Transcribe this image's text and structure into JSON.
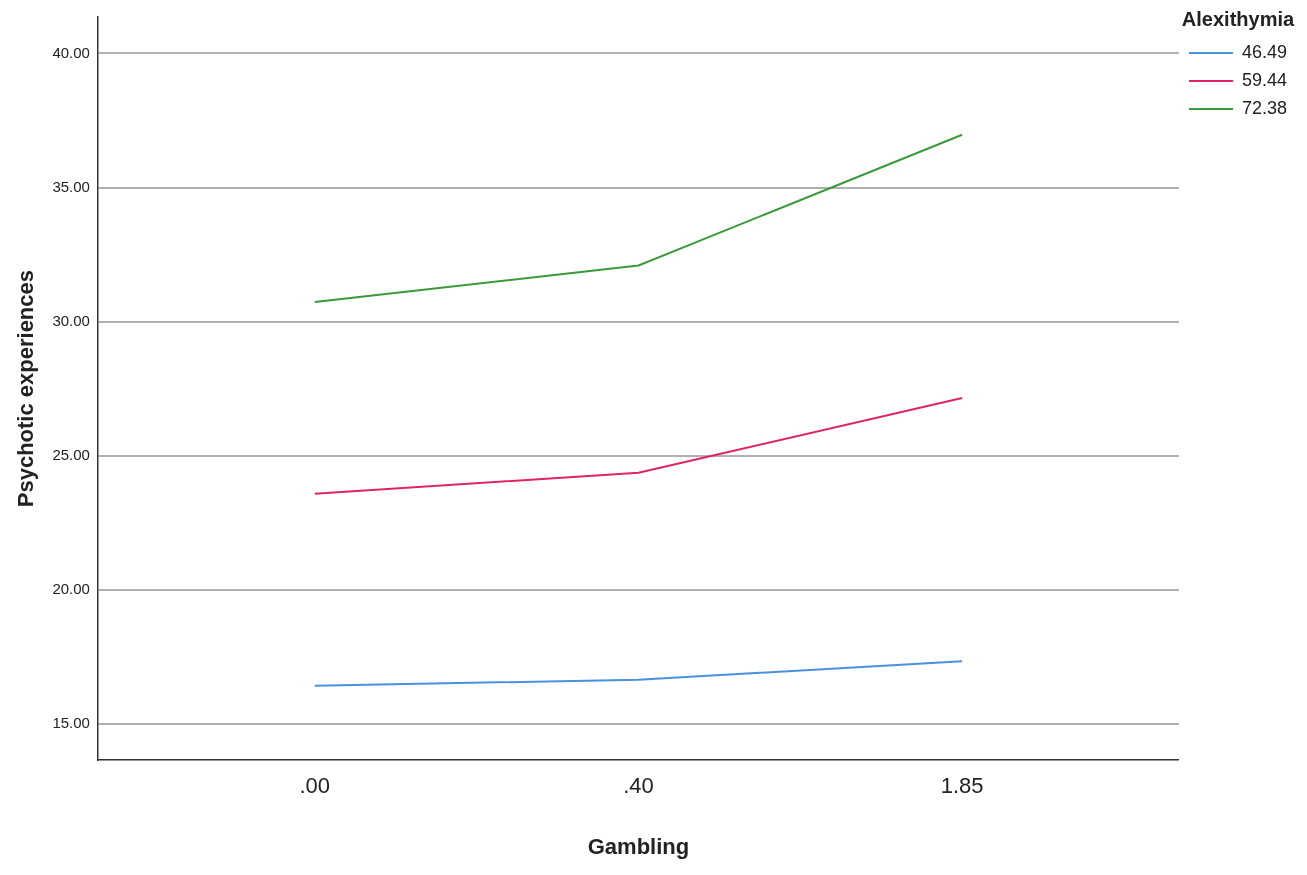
{
  "chart_data": {
    "type": "line",
    "xlabel": "Gambling",
    "ylabel": "Psychotic experiences",
    "legend_title": "Alexithymia",
    "categories": [
      ".00",
      ".40",
      "1.85"
    ],
    "series": [
      {
        "name": "46.49",
        "color": "#4a90e2",
        "values": [
          16.42,
          16.64,
          17.33
        ]
      },
      {
        "name": "59.44",
        "color": "#e0245e",
        "values": [
          23.58,
          24.36,
          27.15
        ]
      },
      {
        "name": "72.38",
        "color": "#3a9a3a",
        "values": [
          30.73,
          32.09,
          36.97
        ]
      }
    ],
    "ylim": [
      13.64,
      41.36
    ],
    "yticks": [
      {
        "value": 15,
        "label": "15.00"
      },
      {
        "value": 20,
        "label": "20.00"
      },
      {
        "value": 25,
        "label": "25.00"
      },
      {
        "value": 30,
        "label": "30.00"
      },
      {
        "value": 35,
        "label": "35.00"
      },
      {
        "value": 40,
        "label": "40.00"
      }
    ],
    "grid": "y",
    "legend": "right",
    "marker": "none",
    "line_style": "solid"
  }
}
